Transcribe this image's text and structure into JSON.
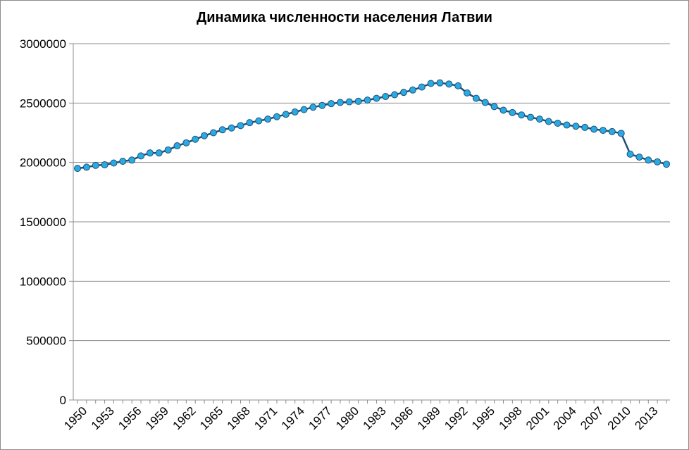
{
  "chart_data": {
    "type": "line",
    "title": "Динамика численности населения Латвии",
    "xlabel": "",
    "ylabel": "",
    "ylim": [
      0,
      3000000
    ],
    "yticks": [
      0,
      500000,
      1000000,
      1500000,
      2000000,
      2500000,
      3000000
    ],
    "ytick_labels": [
      "0",
      "500000",
      "1000000",
      "1500000",
      "2000000",
      "2500000",
      "3000000"
    ],
    "xlim": [
      1950,
      2015
    ],
    "xtick_labels": [
      "1950",
      "1953",
      "1956",
      "1959",
      "1962",
      "1965",
      "1968",
      "1971",
      "1974",
      "1977",
      "1980",
      "1983",
      "1986",
      "1989",
      "1992",
      "1995",
      "1998",
      "2001",
      "2004",
      "2007",
      "2010",
      "2013"
    ],
    "grid": true,
    "legend": "none",
    "series_color": "#29abe2",
    "line_color": "#1f4e79",
    "x": [
      1950,
      1951,
      1952,
      1953,
      1954,
      1955,
      1956,
      1957,
      1958,
      1959,
      1960,
      1961,
      1962,
      1963,
      1964,
      1965,
      1966,
      1967,
      1968,
      1969,
      1970,
      1971,
      1972,
      1973,
      1974,
      1975,
      1976,
      1977,
      1978,
      1979,
      1980,
      1981,
      1982,
      1983,
      1984,
      1985,
      1986,
      1987,
      1988,
      1989,
      1990,
      1991,
      1992,
      1993,
      1994,
      1995,
      1996,
      1997,
      1998,
      1999,
      2000,
      2001,
      2002,
      2003,
      2004,
      2005,
      2006,
      2007,
      2008,
      2009,
      2010,
      2011,
      2012,
      2013,
      2014,
      2015
    ],
    "values": [
      1950000,
      1960000,
      1975000,
      1980000,
      1995000,
      2010000,
      2020000,
      2055000,
      2080000,
      2080000,
      2105000,
      2140000,
      2165000,
      2195000,
      2225000,
      2250000,
      2275000,
      2290000,
      2310000,
      2335000,
      2350000,
      2365000,
      2385000,
      2405000,
      2425000,
      2445000,
      2465000,
      2480000,
      2495000,
      2505000,
      2510000,
      2515000,
      2525000,
      2540000,
      2555000,
      2570000,
      2590000,
      2610000,
      2635000,
      2665000,
      2670000,
      2660000,
      2645000,
      2585000,
      2540000,
      2505000,
      2470000,
      2440000,
      2420000,
      2400000,
      2380000,
      2365000,
      2345000,
      2330000,
      2315000,
      2305000,
      2295000,
      2280000,
      2270000,
      2260000,
      2245000,
      2070000,
      2045000,
      2020000,
      2005000,
      1985000
    ]
  }
}
